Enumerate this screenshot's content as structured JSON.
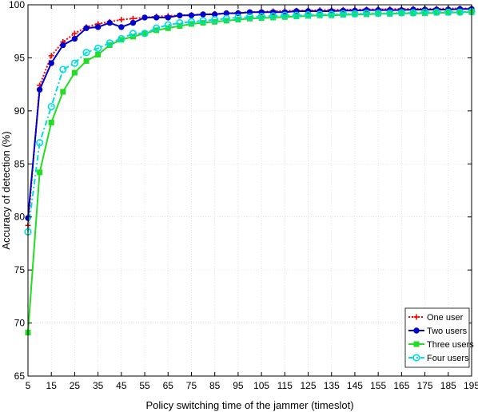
{
  "chart_data": {
    "type": "line",
    "title": "",
    "xlabel": "Policy switching time of the jammer (timeslot)",
    "ylabel": "Accuracy of detection (%)",
    "xlim": [
      5,
      195
    ],
    "ylim": [
      65,
      100
    ],
    "xticks": [
      5,
      15,
      25,
      35,
      45,
      55,
      65,
      75,
      85,
      95,
      105,
      115,
      125,
      135,
      145,
      155,
      165,
      175,
      185,
      195
    ],
    "yticks": [
      65,
      70,
      75,
      80,
      85,
      90,
      95,
      100
    ],
    "grid": true,
    "legend_position": "bottom-right",
    "x": [
      5,
      10,
      15,
      20,
      25,
      30,
      35,
      40,
      45,
      50,
      55,
      60,
      65,
      70,
      75,
      80,
      85,
      90,
      95,
      100,
      105,
      110,
      115,
      120,
      125,
      130,
      135,
      140,
      145,
      150,
      155,
      160,
      165,
      170,
      175,
      180,
      185,
      190,
      195
    ],
    "series": [
      {
        "name": "One user",
        "color": "#ff0000",
        "marker": "plus",
        "line_style": "dotted",
        "values": [
          79.2,
          92.4,
          95.2,
          96.5,
          97.3,
          97.9,
          98.2,
          98.4,
          98.6,
          98.7,
          98.8,
          98.9,
          98.95,
          99.0,
          99.05,
          99.1,
          99.15,
          99.2,
          99.25,
          99.3,
          99.35,
          99.4,
          99.42,
          99.45,
          99.47,
          99.5,
          99.52,
          99.54,
          99.55,
          99.57,
          99.58,
          99.6,
          99.6,
          99.62,
          99.63,
          99.64,
          99.65,
          99.66,
          99.67
        ]
      },
      {
        "name": "Two users",
        "color": "#0000cc",
        "marker": "circle-filled",
        "line_style": "solid",
        "values": [
          79.9,
          92.0,
          94.5,
          96.2,
          96.8,
          97.8,
          97.9,
          98.3,
          97.9,
          98.3,
          98.8,
          98.8,
          98.8,
          99.0,
          99.0,
          99.1,
          99.1,
          99.2,
          99.2,
          99.3,
          99.3,
          99.3,
          99.3,
          99.4,
          99.4,
          99.4,
          99.4,
          99.45,
          99.45,
          99.5,
          99.5,
          99.5,
          99.5,
          99.55,
          99.55,
          99.55,
          99.55,
          99.6,
          99.6
        ]
      },
      {
        "name": "Three users",
        "color": "#22dd22",
        "marker": "square",
        "line_style": "solid",
        "values": [
          69.1,
          84.2,
          88.9,
          91.8,
          93.6,
          94.7,
          95.3,
          96.2,
          96.7,
          97.0,
          97.3,
          97.6,
          97.8,
          98.0,
          98.2,
          98.3,
          98.4,
          98.5,
          98.6,
          98.7,
          98.75,
          98.8,
          98.85,
          98.9,
          98.95,
          99.0,
          99.0,
          99.05,
          99.1,
          99.1,
          99.15,
          99.15,
          99.2,
          99.2,
          99.2,
          99.25,
          99.25,
          99.3,
          99.3
        ]
      },
      {
        "name": "Four users",
        "color": "#00dddd",
        "marker": "diamond",
        "line_style": "dashdot",
        "values": [
          78.6,
          87.0,
          90.4,
          93.9,
          94.5,
          95.5,
          95.9,
          96.4,
          96.8,
          97.3,
          97.3,
          97.8,
          98.1,
          98.3,
          98.4,
          98.5,
          98.6,
          98.7,
          98.8,
          98.85,
          98.9,
          98.95,
          99.0,
          99.0,
          99.05,
          99.1,
          99.1,
          99.15,
          99.15,
          99.2,
          99.2,
          99.2,
          99.25,
          99.25,
          99.3,
          99.3,
          99.3,
          99.3,
          99.35
        ]
      }
    ]
  }
}
